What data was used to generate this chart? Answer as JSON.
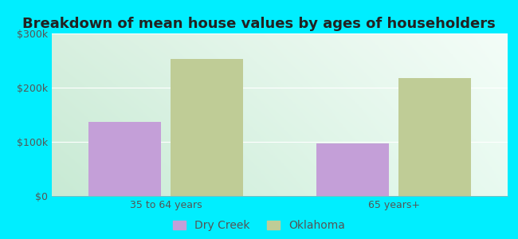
{
  "title": "Breakdown of mean house values by ages of householders",
  "categories": [
    "35 to 64 years",
    "65 years+"
  ],
  "dry_creek_values": [
    137000,
    97000
  ],
  "oklahoma_values": [
    253000,
    218000
  ],
  "dry_creek_color": "#c49fd8",
  "oklahoma_color": "#bfcc96",
  "ylim": [
    0,
    300000
  ],
  "yticks": [
    0,
    100000,
    200000,
    300000
  ],
  "ytick_labels": [
    "$0",
    "$100k",
    "$200k",
    "$300k"
  ],
  "legend_labels": [
    "Dry Creek",
    "Oklahoma"
  ],
  "outer_color": "#00eeff",
  "bar_width": 0.32,
  "title_fontsize": 13,
  "axis_fontsize": 9,
  "legend_fontsize": 10,
  "tick_color": "#555555",
  "title_color": "#222222",
  "bg_color_topleft": "#d8f0e0",
  "bg_color_topright": "#f4fdf8",
  "bg_color_bottomleft": "#c8ead4",
  "bg_color_bottomright": "#e8faf0"
}
